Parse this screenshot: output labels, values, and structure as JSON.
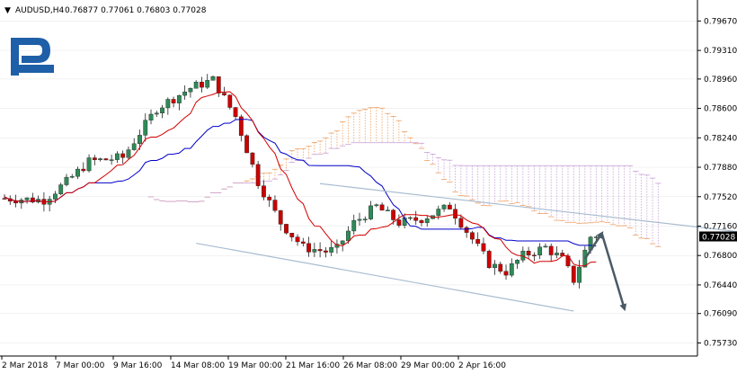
{
  "header": {
    "triangle": "▼",
    "symbol_text": "AUDUSD,H4",
    "ohlc_text": "0.76877 0.77061 0.76803 0.77028"
  },
  "logo": {
    "icon": "brand-r-logo-icon",
    "color": "#1f5fa8"
  },
  "colors": {
    "bull": "#2e8b57",
    "bear": "#cc0000",
    "tenkan": "#d40000",
    "kijun": "#0000c8",
    "cloud_orange": "#f0a060",
    "cloud_violet": "#c8a0d8",
    "channel": "#a8bcd0",
    "arrow": "#4a5a66",
    "price_label_bg": "#000000",
    "grid": "#e6e6e6"
  },
  "chart_data": {
    "type": "candlestick",
    "symbol": "AUDUSD",
    "timeframe": "H4",
    "last_price": "0.77028",
    "ylim": [
      0.7557,
      0.7985
    ],
    "y_ticks": [
      "0.79670",
      "0.79310",
      "0.78960",
      "0.78600",
      "0.78240",
      "0.77880",
      "0.77520",
      "0.77160",
      "0.76800",
      "0.76440",
      "0.76090",
      "0.75730"
    ],
    "x_ticks": [
      "2 Mar 2018",
      "7 Mar 00:00",
      "9 Mar 16:00",
      "14 Mar 08:00",
      "19 Mar 00:00",
      "21 Mar 16:00",
      "26 Mar 08:00",
      "29 Mar 00:00",
      "2 Apr 16:00"
    ],
    "num_bars": 106,
    "price_path": [
      [
        0,
        0.775
      ],
      [
        8,
        0.7748
      ],
      [
        12,
        0.777
      ],
      [
        16,
        0.7795
      ],
      [
        22,
        0.78
      ],
      [
        28,
        0.786
      ],
      [
        34,
        0.7885
      ],
      [
        38,
        0.7895
      ],
      [
        42,
        0.785
      ],
      [
        46,
        0.777
      ],
      [
        50,
        0.772
      ],
      [
        54,
        0.769
      ],
      [
        58,
        0.7685
      ],
      [
        60,
        0.7688
      ],
      [
        63,
        0.772
      ],
      [
        67,
        0.774
      ],
      [
        71,
        0.772
      ],
      [
        75,
        0.7725
      ],
      [
        80,
        0.774
      ],
      [
        84,
        0.77
      ],
      [
        87,
        0.767
      ],
      [
        90,
        0.766
      ],
      [
        93,
        0.768
      ],
      [
        97,
        0.769
      ],
      [
        100,
        0.7675
      ],
      [
        102,
        0.765
      ],
      [
        105,
        0.7703
      ]
    ],
    "indicators": [
      "Ichimoku Tenkan-sen",
      "Ichimoku Kijun-sen",
      "Ichimoku Cloud"
    ],
    "channel_lines": [
      {
        "start": [
          56,
          0.7768
        ],
        "end": [
          148,
          0.7695
        ]
      },
      {
        "start": [
          34,
          0.7695
        ],
        "end": [
          101,
          0.7612
        ]
      }
    ],
    "forecast_arrows": [
      {
        "from": [
          103,
          0.7676
        ],
        "to": [
          106,
          0.7707
        ]
      },
      {
        "from": [
          106,
          0.7707
        ],
        "to": [
          110,
          0.7615
        ]
      }
    ]
  }
}
